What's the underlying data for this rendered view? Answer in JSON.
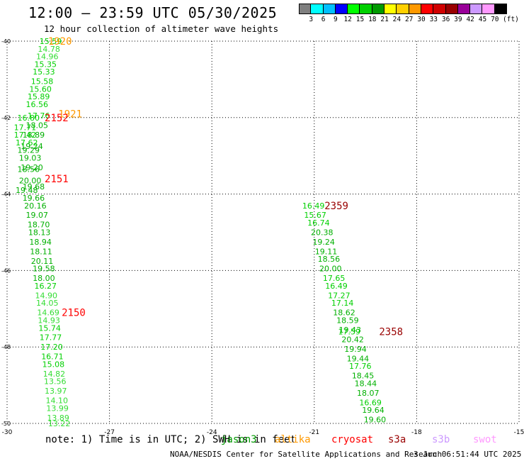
{
  "header": {
    "title": "12:00 — 23:59 UTC 05/30/2025",
    "subtitle": "12 hour collection of altimeter wave heights"
  },
  "colorbar": {
    "colors": [
      "#7f7f7f",
      "#00ffff",
      "#00bfff",
      "#0000ff",
      "#00ff00",
      "#00d000",
      "#009900",
      "#ffff00",
      "#ffd000",
      "#ff9900",
      "#ff0000",
      "#d00000",
      "#990000",
      "#990099",
      "#cc99ff",
      "#ff99ff",
      "#000000"
    ],
    "labels": [
      "3",
      "6",
      "9",
      "12",
      "15",
      "18",
      "21",
      "24",
      "27",
      "30",
      "33",
      "36",
      "39",
      "42",
      "45",
      "70"
    ],
    "unit": "(ft)"
  },
  "map": {
    "lon_range": [
      -30,
      -15
    ],
    "lat_range": [
      -50,
      -40
    ],
    "x_ticks": [
      "-30",
      "-27",
      "-24",
      "-21",
      "-18",
      "-15"
    ],
    "y_ticks": [
      "-40",
      "-42",
      "-44",
      "-46",
      "-48",
      "-50"
    ],
    "track_labels": [
      {
        "text": "1920",
        "color": "#ff9900",
        "lon": -28.8,
        "lat": -40.0
      },
      {
        "text": "1921",
        "color": "#ff9900",
        "lon": -28.5,
        "lat": -41.9
      },
      {
        "text": "2152",
        "color": "#ff0000",
        "lon": -28.9,
        "lat": -42.0
      },
      {
        "text": "2151",
        "color": "#ff0000",
        "lon": -28.9,
        "lat": -43.6
      },
      {
        "text": "2150",
        "color": "#ff0000",
        "lon": -28.4,
        "lat": -47.1
      },
      {
        "text": "2359",
        "color": "#990000",
        "lon": -20.7,
        "lat": -44.3
      },
      {
        "text": "2358",
        "color": "#990000",
        "lon": -19.1,
        "lat": -47.6
      }
    ],
    "tracks": [
      {
        "name": "1920",
        "points": [
          {
            "v": "15.59",
            "lon": -29.05,
            "lat": -40.0
          },
          {
            "v": "14.78",
            "lon": -29.1,
            "lat": -40.2
          },
          {
            "v": "14.96",
            "lon": -29.15,
            "lat": -40.4
          },
          {
            "v": "15.35",
            "lon": -29.2,
            "lat": -40.6
          },
          {
            "v": "15.33",
            "lon": -29.25,
            "lat": -40.8
          },
          {
            "v": "15.58",
            "lon": -29.3,
            "lat": -41.05
          },
          {
            "v": "15.60",
            "lon": -29.35,
            "lat": -41.25
          },
          {
            "v": "15.89",
            "lon": -29.4,
            "lat": -41.45
          },
          {
            "v": "16.56",
            "lon": -29.45,
            "lat": -41.65
          },
          {
            "v": "17.76",
            "lon": -29.4,
            "lat": -41.95
          },
          {
            "v": "18.05",
            "lon": -29.45,
            "lat": -42.2
          },
          {
            "v": "18.89",
            "lon": -29.55,
            "lat": -42.45
          },
          {
            "v": "19.24",
            "lon": -29.6,
            "lat": -42.75
          },
          {
            "v": "18.56",
            "lon": -29.7,
            "lat": -43.35
          },
          {
            "v": "19.48",
            "lon": -29.75,
            "lat": -43.9
          }
        ]
      },
      {
        "name": "2152",
        "points": [
          {
            "v": "16.80",
            "lon": -29.7,
            "lat": -42.0
          },
          {
            "v": "17.71",
            "lon": -29.8,
            "lat": -42.25
          },
          {
            "v": "17.42",
            "lon": -29.8,
            "lat": -42.45
          },
          {
            "v": "17.62",
            "lon": -29.75,
            "lat": -42.65
          },
          {
            "v": "19.29",
            "lon": -29.7,
            "lat": -42.85
          },
          {
            "v": "19.03",
            "lon": -29.65,
            "lat": -43.05
          },
          {
            "v": "19.20",
            "lon": -29.6,
            "lat": -43.3
          },
          {
            "v": "20.00",
            "lon": -29.65,
            "lat": -43.65
          },
          {
            "v": "19.68",
            "lon": -29.55,
            "lat": -43.8
          }
        ]
      },
      {
        "name": "2151",
        "points": [
          {
            "v": "19.66",
            "lon": -29.55,
            "lat": -44.1
          },
          {
            "v": "20.16",
            "lon": -29.5,
            "lat": -44.3
          },
          {
            "v": "19.07",
            "lon": -29.45,
            "lat": -44.55
          },
          {
            "v": "18.70",
            "lon": -29.4,
            "lat": -44.8
          },
          {
            "v": "18.13",
            "lon": -29.38,
            "lat": -45.0
          },
          {
            "v": "18.94",
            "lon": -29.35,
            "lat": -45.25
          },
          {
            "v": "18.11",
            "lon": -29.33,
            "lat": -45.5
          },
          {
            "v": "20.11",
            "lon": -29.3,
            "lat": -45.75
          },
          {
            "v": "19.58",
            "lon": -29.25,
            "lat": -45.95
          }
        ]
      },
      {
        "name": "2150",
        "points": [
          {
            "v": "18.00",
            "lon": -29.25,
            "lat": -46.2
          },
          {
            "v": "16.27",
            "lon": -29.2,
            "lat": -46.4
          },
          {
            "v": "14.90",
            "lon": -29.18,
            "lat": -46.65
          },
          {
            "v": "14.05",
            "lon": -29.15,
            "lat": -46.85
          },
          {
            "v": "14.69",
            "lon": -29.12,
            "lat": -47.1
          },
          {
            "v": "14.93",
            "lon": -29.1,
            "lat": -47.3
          },
          {
            "v": "15.74",
            "lon": -29.08,
            "lat": -47.5
          },
          {
            "v": "17.77",
            "lon": -29.05,
            "lat": -47.75
          },
          {
            "v": "17.20",
            "lon": -29.02,
            "lat": -48.0
          },
          {
            "v": "16.71",
            "lon": -29.0,
            "lat": -48.25
          },
          {
            "v": "15.08",
            "lon": -28.97,
            "lat": -48.45
          },
          {
            "v": "14.82",
            "lon": -28.95,
            "lat": -48.7
          },
          {
            "v": "13.56",
            "lon": -28.92,
            "lat": -48.9
          },
          {
            "v": "13.97",
            "lon": -28.9,
            "lat": -49.15
          },
          {
            "v": "14.10",
            "lon": -28.87,
            "lat": -49.4
          },
          {
            "v": "13.99",
            "lon": -28.85,
            "lat": -49.6
          },
          {
            "v": "13.89",
            "lon": -28.83,
            "lat": -49.85
          },
          {
            "v": "13.22",
            "lon": -28.8,
            "lat": -50.0
          }
        ]
      },
      {
        "name": "2359",
        "points": [
          {
            "v": "16.49",
            "lon": -21.35,
            "lat": -44.3
          },
          {
            "v": "15.67",
            "lon": -21.3,
            "lat": -44.55
          },
          {
            "v": "16.74",
            "lon": -21.2,
            "lat": -44.75
          },
          {
            "v": "20.38",
            "lon": -21.1,
            "lat": -45.0
          },
          {
            "v": "19.24",
            "lon": -21.05,
            "lat": -45.25
          },
          {
            "v": "19.11",
            "lon": -20.98,
            "lat": -45.5
          },
          {
            "v": "18.56",
            "lon": -20.9,
            "lat": -45.7
          },
          {
            "v": "20.00",
            "lon": -20.85,
            "lat": -45.95
          },
          {
            "v": "17.65",
            "lon": -20.75,
            "lat": -46.2
          },
          {
            "v": "16.49",
            "lon": -20.68,
            "lat": -46.4
          },
          {
            "v": "17.27",
            "lon": -20.6,
            "lat": -46.65
          },
          {
            "v": "17.14",
            "lon": -20.5,
            "lat": -46.85
          },
          {
            "v": "18.62",
            "lon": -20.45,
            "lat": -47.1
          },
          {
            "v": "18.59",
            "lon": -20.35,
            "lat": -47.3
          },
          {
            "v": "19.43",
            "lon": -20.28,
            "lat": -47.55
          }
        ]
      },
      {
        "name": "2358",
        "points": [
          {
            "v": "17.59",
            "lon": -20.3,
            "lat": -47.6
          },
          {
            "v": "20.42",
            "lon": -20.2,
            "lat": -47.8
          },
          {
            "v": "19.94",
            "lon": -20.12,
            "lat": -48.05
          },
          {
            "v": "19.44",
            "lon": -20.05,
            "lat": -48.3
          },
          {
            "v": "17.76",
            "lon": -19.98,
            "lat": -48.5
          },
          {
            "v": "18.45",
            "lon": -19.9,
            "lat": -48.75
          },
          {
            "v": "18.44",
            "lon": -19.82,
            "lat": -48.95
          },
          {
            "v": "18.07",
            "lon": -19.75,
            "lat": -49.2
          },
          {
            "v": "16.69",
            "lon": -19.68,
            "lat": -49.45
          },
          {
            "v": "19.64",
            "lon": -19.6,
            "lat": -49.65
          },
          {
            "v": "19.60",
            "lon": -19.55,
            "lat": -49.9
          }
        ]
      }
    ]
  },
  "note": "note: 1) Time is in UTC; 2) SWH is in feet",
  "legend": [
    {
      "label": "jason3",
      "color": "#009900"
    },
    {
      "label": "altika",
      "color": "#ff9900"
    },
    {
      "label": "cryosat",
      "color": "#ff0000"
    },
    {
      "label": "s3a",
      "color": "#990000"
    },
    {
      "label": "s3b",
      "color": "#cc99ff"
    },
    {
      "label": "swot",
      "color": "#ff99ff"
    }
  ],
  "footer": {
    "credit": "NOAA/NESDIS Center for Satellite Applications and Research",
    "timestamp": "3 Jun 06:51:44 UTC 2025"
  }
}
